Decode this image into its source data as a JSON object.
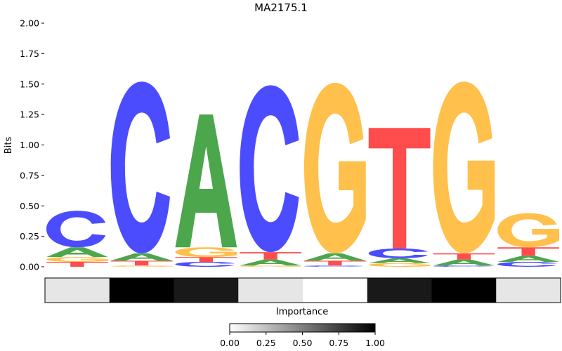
{
  "chart_data": {
    "type": "sequence-logo",
    "title": "MA2175.1",
    "ylabel": "Bits",
    "ylim": [
      0,
      2
    ],
    "yticks": [
      "0.00",
      "0.25",
      "0.50",
      "0.75",
      "1.00",
      "1.25",
      "1.50",
      "1.75",
      "2.00"
    ],
    "letter_colors": {
      "A": "#4ca64c",
      "C": "#4c4cff",
      "G": "#ffc04c",
      "T": "#ff4c4c"
    },
    "positions": [
      {
        "letters": [
          [
            "T",
            0.04
          ],
          [
            "G",
            0.04
          ],
          [
            "A",
            0.08
          ],
          [
            "C",
            0.3
          ]
        ]
      },
      {
        "letters": [
          [
            "G",
            0.01
          ],
          [
            "T",
            0.04
          ],
          [
            "A",
            0.06
          ],
          [
            "C",
            1.41
          ]
        ]
      },
      {
        "letters": [
          [
            "C",
            0.04
          ],
          [
            "T",
            0.04
          ],
          [
            "G",
            0.08
          ],
          [
            "A",
            1.09
          ]
        ]
      },
      {
        "letters": [
          [
            "G",
            0.01
          ],
          [
            "A",
            0.05
          ],
          [
            "T",
            0.06
          ],
          [
            "C",
            1.37
          ]
        ]
      },
      {
        "letters": [
          [
            "C",
            0.01
          ],
          [
            "T",
            0.04
          ],
          [
            "A",
            0.06
          ],
          [
            "G",
            1.4
          ]
        ]
      },
      {
        "letters": [
          [
            "G",
            0.03
          ],
          [
            "A",
            0.04
          ],
          [
            "C",
            0.08
          ],
          [
            "T",
            0.99
          ]
        ]
      },
      {
        "letters": [
          [
            "C",
            0.01
          ],
          [
            "A",
            0.05
          ],
          [
            "T",
            0.05
          ],
          [
            "G",
            1.41
          ]
        ]
      },
      {
        "letters": [
          [
            "C",
            0.04
          ],
          [
            "A",
            0.05
          ],
          [
            "T",
            0.07
          ],
          [
            "G",
            0.28
          ]
        ]
      }
    ],
    "importance": {
      "label": "Importance",
      "values": [
        0.1,
        1.0,
        0.9,
        0.1,
        0.0,
        0.9,
        1.0,
        0.1
      ],
      "colorbar_ticks": [
        "0.00",
        "0.25",
        "0.50",
        "0.75",
        "1.00"
      ]
    }
  }
}
